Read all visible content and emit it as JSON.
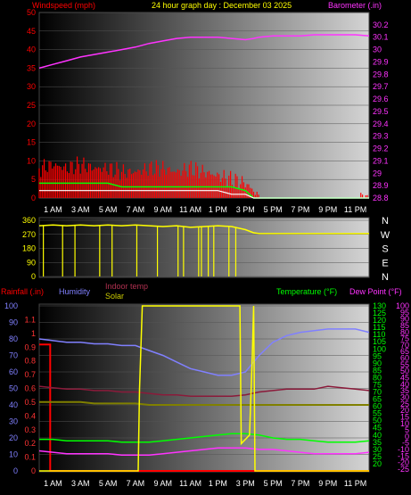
{
  "header": {
    "windspeed_label": "Windspeed (mph)",
    "title": "24 hour graph day : December 03 2025",
    "barometer_label": "Barometer (.in)"
  },
  "legend": {
    "rainfall_label": "Rainfall (.in)",
    "humidity_label": "Humidity",
    "indoor_label": "Indoor temp",
    "solar_label": "Solar",
    "temperature_label": "Temperature (°F)",
    "dewpoint_label": "Dew Point (°F)"
  },
  "colors": {
    "background": "#000000",
    "wind": "#ff0000",
    "wind_gust": "#ff0000",
    "wind_avg": "#00ff00",
    "wind_low": "#ffffff",
    "barometer": "#ff33ff",
    "direction": "#ffff00",
    "rain": "#ff0000",
    "humidity": "#8080ff",
    "indoor": "#8b1a3a",
    "solar": "#ffff00",
    "solar_avg": "#808000",
    "temperature": "#00ff00",
    "dewpoint": "#ff33ff"
  },
  "x_axis": {
    "hour_labels": [
      "1 AM",
      "3 AM",
      "5 AM",
      "7 AM",
      "9 AM",
      "11 AM",
      "1 PM",
      "3 PM",
      "5 PM",
      "7 PM",
      "9 PM",
      "11 PM"
    ],
    "hour_values": [
      1,
      3,
      5,
      7,
      9,
      11,
      13,
      15,
      17,
      19,
      21,
      23
    ],
    "range": [
      0,
      24
    ]
  },
  "chart_data": [
    {
      "type": "line",
      "title": "24 hour graph day : December 03 2025",
      "ylabel": "Windspeed (mph)",
      "y2label": "Barometer (.in)",
      "ylim": [
        0,
        50
      ],
      "y2lim": [
        28.8,
        30.3
      ],
      "y_ticks": [
        0,
        5,
        10,
        15,
        20,
        25,
        30,
        35,
        40,
        45,
        50
      ],
      "y2_ticks": [
        "28.8",
        "28.9",
        "29",
        "29.1",
        "29.2",
        "29.3",
        "29.4",
        "29.5",
        "29.6",
        "29.7",
        "29.8",
        "29.9",
        "30",
        "30.1",
        "30.2"
      ],
      "x": [
        0,
        1,
        2,
        3,
        4,
        5,
        6,
        7,
        8,
        9,
        10,
        11,
        12,
        13,
        14,
        15,
        15.6,
        16,
        17,
        18,
        19,
        20,
        21,
        22,
        23,
        24
      ],
      "series": [
        {
          "name": "Windspeed (mph)",
          "role": "gust",
          "values": [
            8,
            9,
            8,
            9,
            8,
            8,
            7,
            7,
            8,
            8,
            7,
            8,
            7,
            6,
            5,
            4,
            2,
            0,
            0,
            0,
            0,
            0,
            0,
            0,
            0,
            1
          ]
        },
        {
          "role": "average",
          "values": [
            4,
            4,
            4,
            4,
            4,
            4,
            3,
            3,
            3,
            3,
            3,
            3,
            3,
            3,
            3,
            2,
            0,
            0,
            0,
            0,
            0,
            0,
            0,
            0,
            0,
            0
          ]
        },
        {
          "role": "low",
          "values": [
            2,
            2,
            2,
            2,
            2,
            2,
            2,
            2,
            2,
            2,
            2,
            2,
            2,
            2,
            1,
            1,
            0,
            0,
            0,
            0,
            0,
            0,
            0,
            0,
            0,
            0
          ]
        },
        {
          "name": "Barometer (.in)",
          "axis": "y2",
          "values": [
            29.85,
            29.88,
            29.91,
            29.94,
            29.96,
            29.98,
            30.0,
            30.02,
            30.05,
            30.07,
            30.09,
            30.1,
            30.1,
            30.1,
            30.09,
            30.08,
            30.09,
            30.1,
            30.11,
            30.11,
            30.11,
            30.12,
            30.12,
            30.12,
            30.12,
            30.11
          ]
        }
      ]
    },
    {
      "type": "line",
      "ylabel": "Wind direction",
      "ylim": [
        0,
        360
      ],
      "y_ticks": [
        0,
        90,
        180,
        270,
        360
      ],
      "compass_labels": [
        "N",
        "W",
        "S",
        "E",
        "N"
      ],
      "x": [
        0,
        1,
        2,
        3,
        4,
        5,
        6,
        7,
        8,
        9,
        10,
        11,
        12,
        13,
        14,
        15,
        15.6,
        16,
        17,
        18,
        19,
        20,
        21,
        22,
        23,
        24
      ],
      "series": [
        {
          "name": "Direction",
          "values": [
            325,
            330,
            325,
            330,
            325,
            330,
            325,
            330,
            325,
            320,
            325,
            315,
            320,
            325,
            320,
            300,
            280,
            275,
            275,
            275,
            275,
            275,
            275,
            275,
            275,
            275
          ]
        }
      ],
      "dips_to_zero_at_hours": [
        0.3,
        1.7,
        2.6,
        4.4,
        5.3,
        7.1,
        8.6,
        10.1,
        10.5,
        11.6,
        11.8,
        12.3,
        12.7,
        13.8,
        14.3
      ]
    },
    {
      "type": "line",
      "left_axes": [
        {
          "label": "Rainfall (.in)",
          "ylim": [
            0,
            1.2
          ],
          "ticks": [
            "0",
            "0.1",
            "0.2",
            "0.3",
            "0.4",
            "0.5",
            "0.6",
            "0.7",
            "0.8",
            "0.9",
            "1",
            "1.1"
          ]
        },
        {
          "label": "Humidity",
          "ylim": [
            0,
            100
          ],
          "ticks": [
            "0",
            "10",
            "20",
            "30",
            "40",
            "50",
            "60",
            "70",
            "80",
            "90",
            "100"
          ]
        }
      ],
      "right_axes": [
        {
          "label": "Temperature (°F)",
          "ylim": [
            15,
            130
          ],
          "ticks": [
            "20",
            "25",
            "30",
            "35",
            "40",
            "45",
            "50",
            "55",
            "60",
            "65",
            "70",
            "75",
            "80",
            "85",
            "90",
            "95",
            "100",
            "105",
            "110",
            "115",
            "120",
            "125",
            "130"
          ]
        },
        {
          "label": "Dew Point (°F)",
          "ticks": [
            "-25",
            "-20",
            "-15",
            "-10",
            "-5",
            "0",
            "5",
            "10",
            "15",
            "20",
            "25",
            "30",
            "35",
            "40",
            "45",
            "50",
            "55",
            "60",
            "65",
            "70",
            "75",
            "80",
            "85",
            "90",
            "95",
            "100"
          ]
        }
      ],
      "x": [
        0,
        1,
        2,
        3,
        4,
        5,
        6,
        7,
        8,
        9,
        10,
        11,
        12,
        13,
        14,
        15,
        16,
        17,
        18,
        19,
        20,
        21,
        22,
        23,
        24
      ],
      "series": [
        {
          "name": "Rainfall (.in)",
          "axis": "rain",
          "values": [
            0.92,
            0,
            0,
            0,
            0,
            0,
            0,
            0,
            0,
            0,
            0,
            0,
            0,
            0,
            0,
            0,
            0,
            0,
            0,
            0,
            0,
            0,
            0,
            0,
            0
          ]
        },
        {
          "name": "Humidity",
          "axis": "humidity",
          "values": [
            80,
            79,
            78,
            78,
            77,
            77,
            76,
            76,
            73,
            70,
            66,
            62,
            60,
            58,
            58,
            60,
            70,
            78,
            82,
            84,
            85,
            86,
            86,
            86,
            84
          ]
        },
        {
          "name": "Indoor temp",
          "axis": "temperature",
          "values": [
            74,
            73,
            72,
            72,
            71,
            71,
            70,
            70,
            69,
            68,
            68,
            67,
            67,
            67,
            67,
            68,
            70,
            71,
            72,
            72,
            72,
            74,
            73,
            72,
            71
          ]
        },
        {
          "name": "Solar",
          "axis": "temperature",
          "values": [
            15,
            15,
            15,
            15,
            15,
            15,
            15,
            15,
            130,
            130,
            130,
            130,
            130,
            130,
            130,
            35,
            15,
            15,
            15,
            15,
            15,
            15,
            15,
            15,
            15
          ]
        },
        {
          "role": "solar-average",
          "axis": "temperature",
          "values": [
            63,
            63,
            63,
            63,
            62,
            62,
            62,
            62,
            61,
            61,
            61,
            61,
            61,
            61,
            61,
            61,
            61,
            61,
            61,
            61,
            61,
            61,
            61,
            61,
            61
          ]
        },
        {
          "name": "Temperature (°F)",
          "axis": "temperature",
          "values": [
            37,
            37,
            36,
            36,
            36,
            36,
            35,
            35,
            35,
            36,
            37,
            38,
            39,
            40,
            41,
            41,
            40,
            38,
            37,
            37,
            36,
            35,
            35,
            35,
            36
          ]
        },
        {
          "name": "Dew Point (°F)",
          "axis": "temperature",
          "values": [
            29,
            28,
            27,
            27,
            27,
            27,
            26,
            26,
            26,
            27,
            28,
            29,
            30,
            31,
            31,
            31,
            30,
            30,
            29,
            28,
            27,
            27,
            27,
            27,
            28
          ]
        }
      ]
    }
  ]
}
